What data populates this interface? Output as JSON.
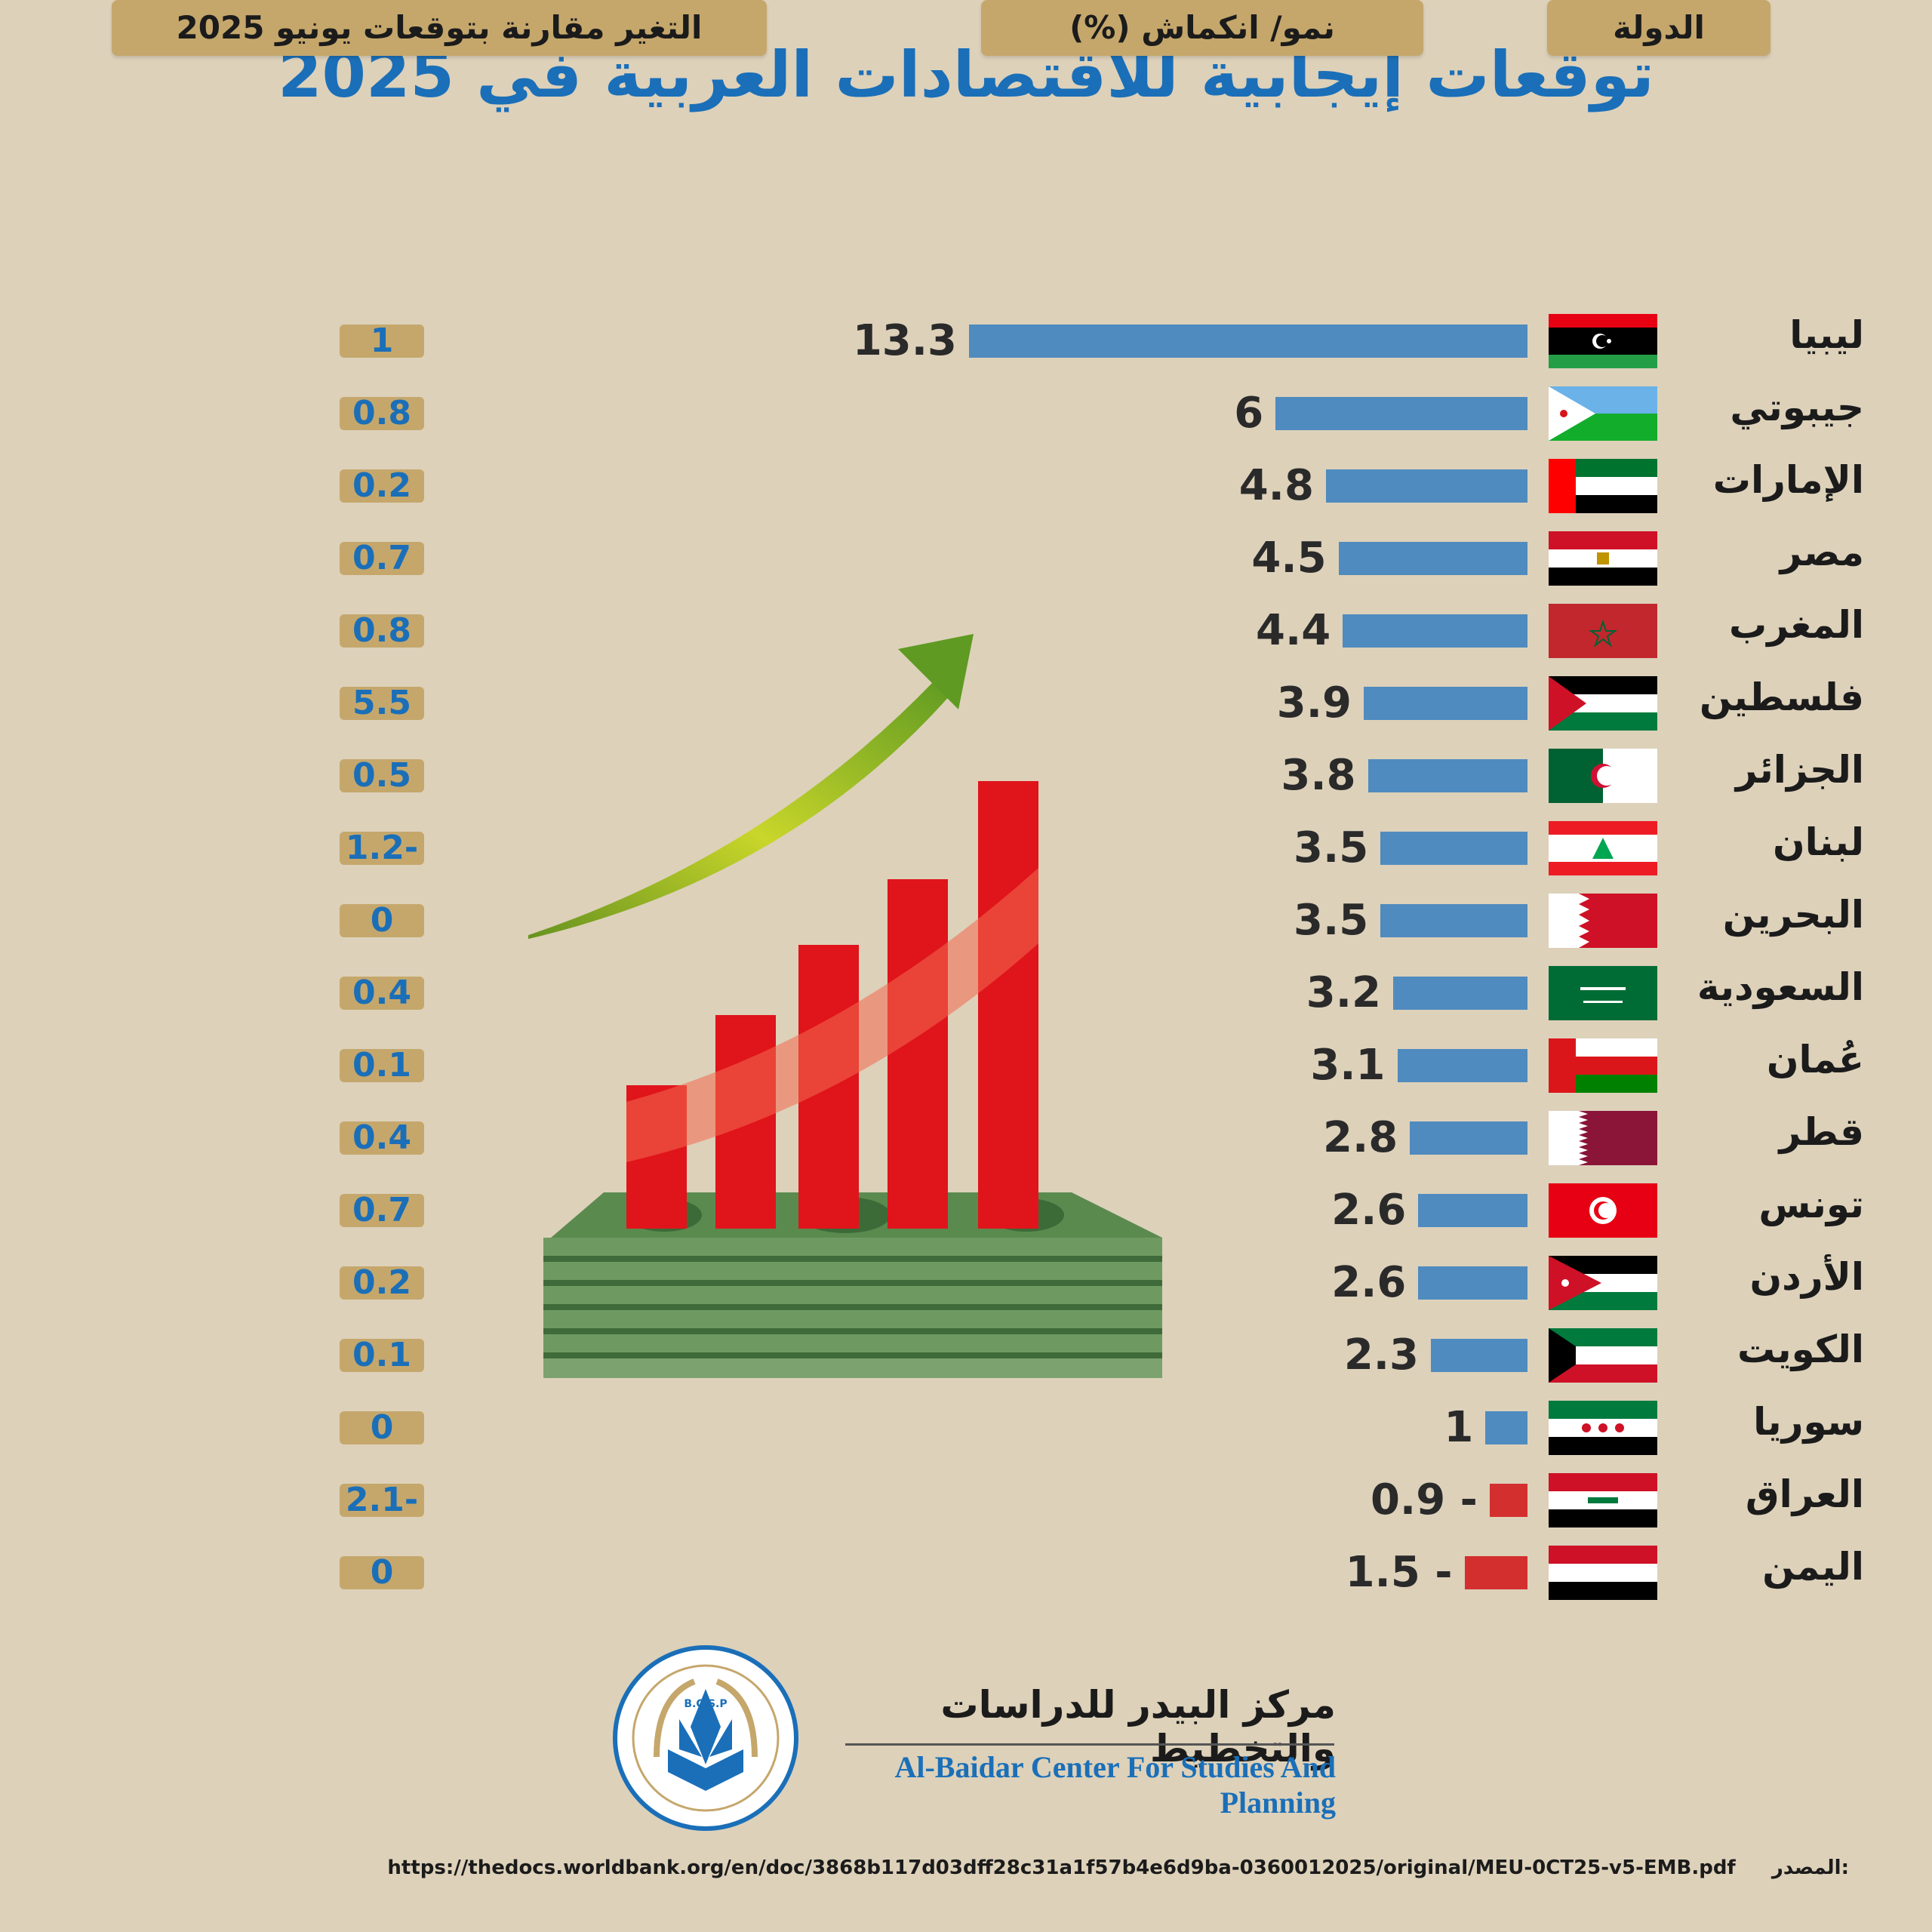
{
  "title": "توقعات إيجابية للاقتصادات العربية في 2025",
  "headers": {
    "country": "الدولة",
    "growth": "نمو/ انكماش (%)",
    "change": "التغير مقارنة بتوقعات يونيو 2025"
  },
  "colors": {
    "positive_bar": "#4f8bbf",
    "negative_bar": "#d32f2f",
    "title": "#1a6fb8",
    "header_bg": "#c5a76c"
  },
  "chart_data": {
    "type": "bar",
    "categories": [
      "ليبيا",
      "جيبوتي",
      "الإمارات",
      "مصر",
      "المغرب",
      "فلسطين",
      "الجزائر",
      "لبنان",
      "البحرين",
      "السعودية",
      "عُمان",
      "قطر",
      "تونس",
      "الأردن",
      "الكويت",
      "سوريا",
      "العراق",
      "اليمن"
    ],
    "values": [
      13.3,
      6,
      4.8,
      4.5,
      4.4,
      3.9,
      3.8,
      3.5,
      3.5,
      3.2,
      3.1,
      2.8,
      2.6,
      2.6,
      2.3,
      1,
      -0.9,
      -1.5
    ],
    "value_labels": [
      "13.3",
      "6",
      "4.8",
      "4.5",
      "4.4",
      "3.9",
      "3.8",
      "3.5",
      "3.5",
      "3.2",
      "3.1",
      "2.8",
      "2.6",
      "2.6",
      "2.3",
      "1",
      "0.9 -",
      "1.5 -"
    ],
    "change_values": [
      1,
      0.8,
      0.2,
      0.7,
      0.8,
      5.5,
      0.5,
      -1.2,
      0,
      0.4,
      0.1,
      0.4,
      0.7,
      0.2,
      0.1,
      0,
      -2.1,
      0
    ],
    "change_labels": [
      "1",
      "0.8",
      "0.2",
      "0.7",
      "0.8",
      "5.5",
      "0.5",
      "1.2-",
      "0",
      "0.4",
      "0.1",
      "0.4",
      "0.7",
      "0.2",
      "0.1",
      "0",
      "2.1-",
      "0"
    ],
    "flags": [
      "libya",
      "djibouti",
      "uae",
      "egypt",
      "morocco",
      "palestine",
      "algeria",
      "lebanon",
      "bahrain",
      "saudi",
      "oman",
      "qatar",
      "tunisia",
      "jordan",
      "kuwait",
      "syria",
      "iraq",
      "yemen"
    ]
  },
  "logo": {
    "name_ar": "مركز البيدر للدراسات والتخطيط",
    "name_en": "Al-Baidar Center For Studies And Planning",
    "emblem_text_top": "مركز البيدر للدراسات والتخطيط",
    "emblem_abbr": "B.C.S.P",
    "emblem_text_bottom": "Al-Baidar Center for Studies and Planning"
  },
  "source": {
    "label": "المصدر:",
    "url": "https://thedocs.worldbank.org/en/doc/3868b117d03dff28c31a1f57b4e6d9ba-0360012025/original/MEU-0CT25-v5-EMB.pdf"
  }
}
